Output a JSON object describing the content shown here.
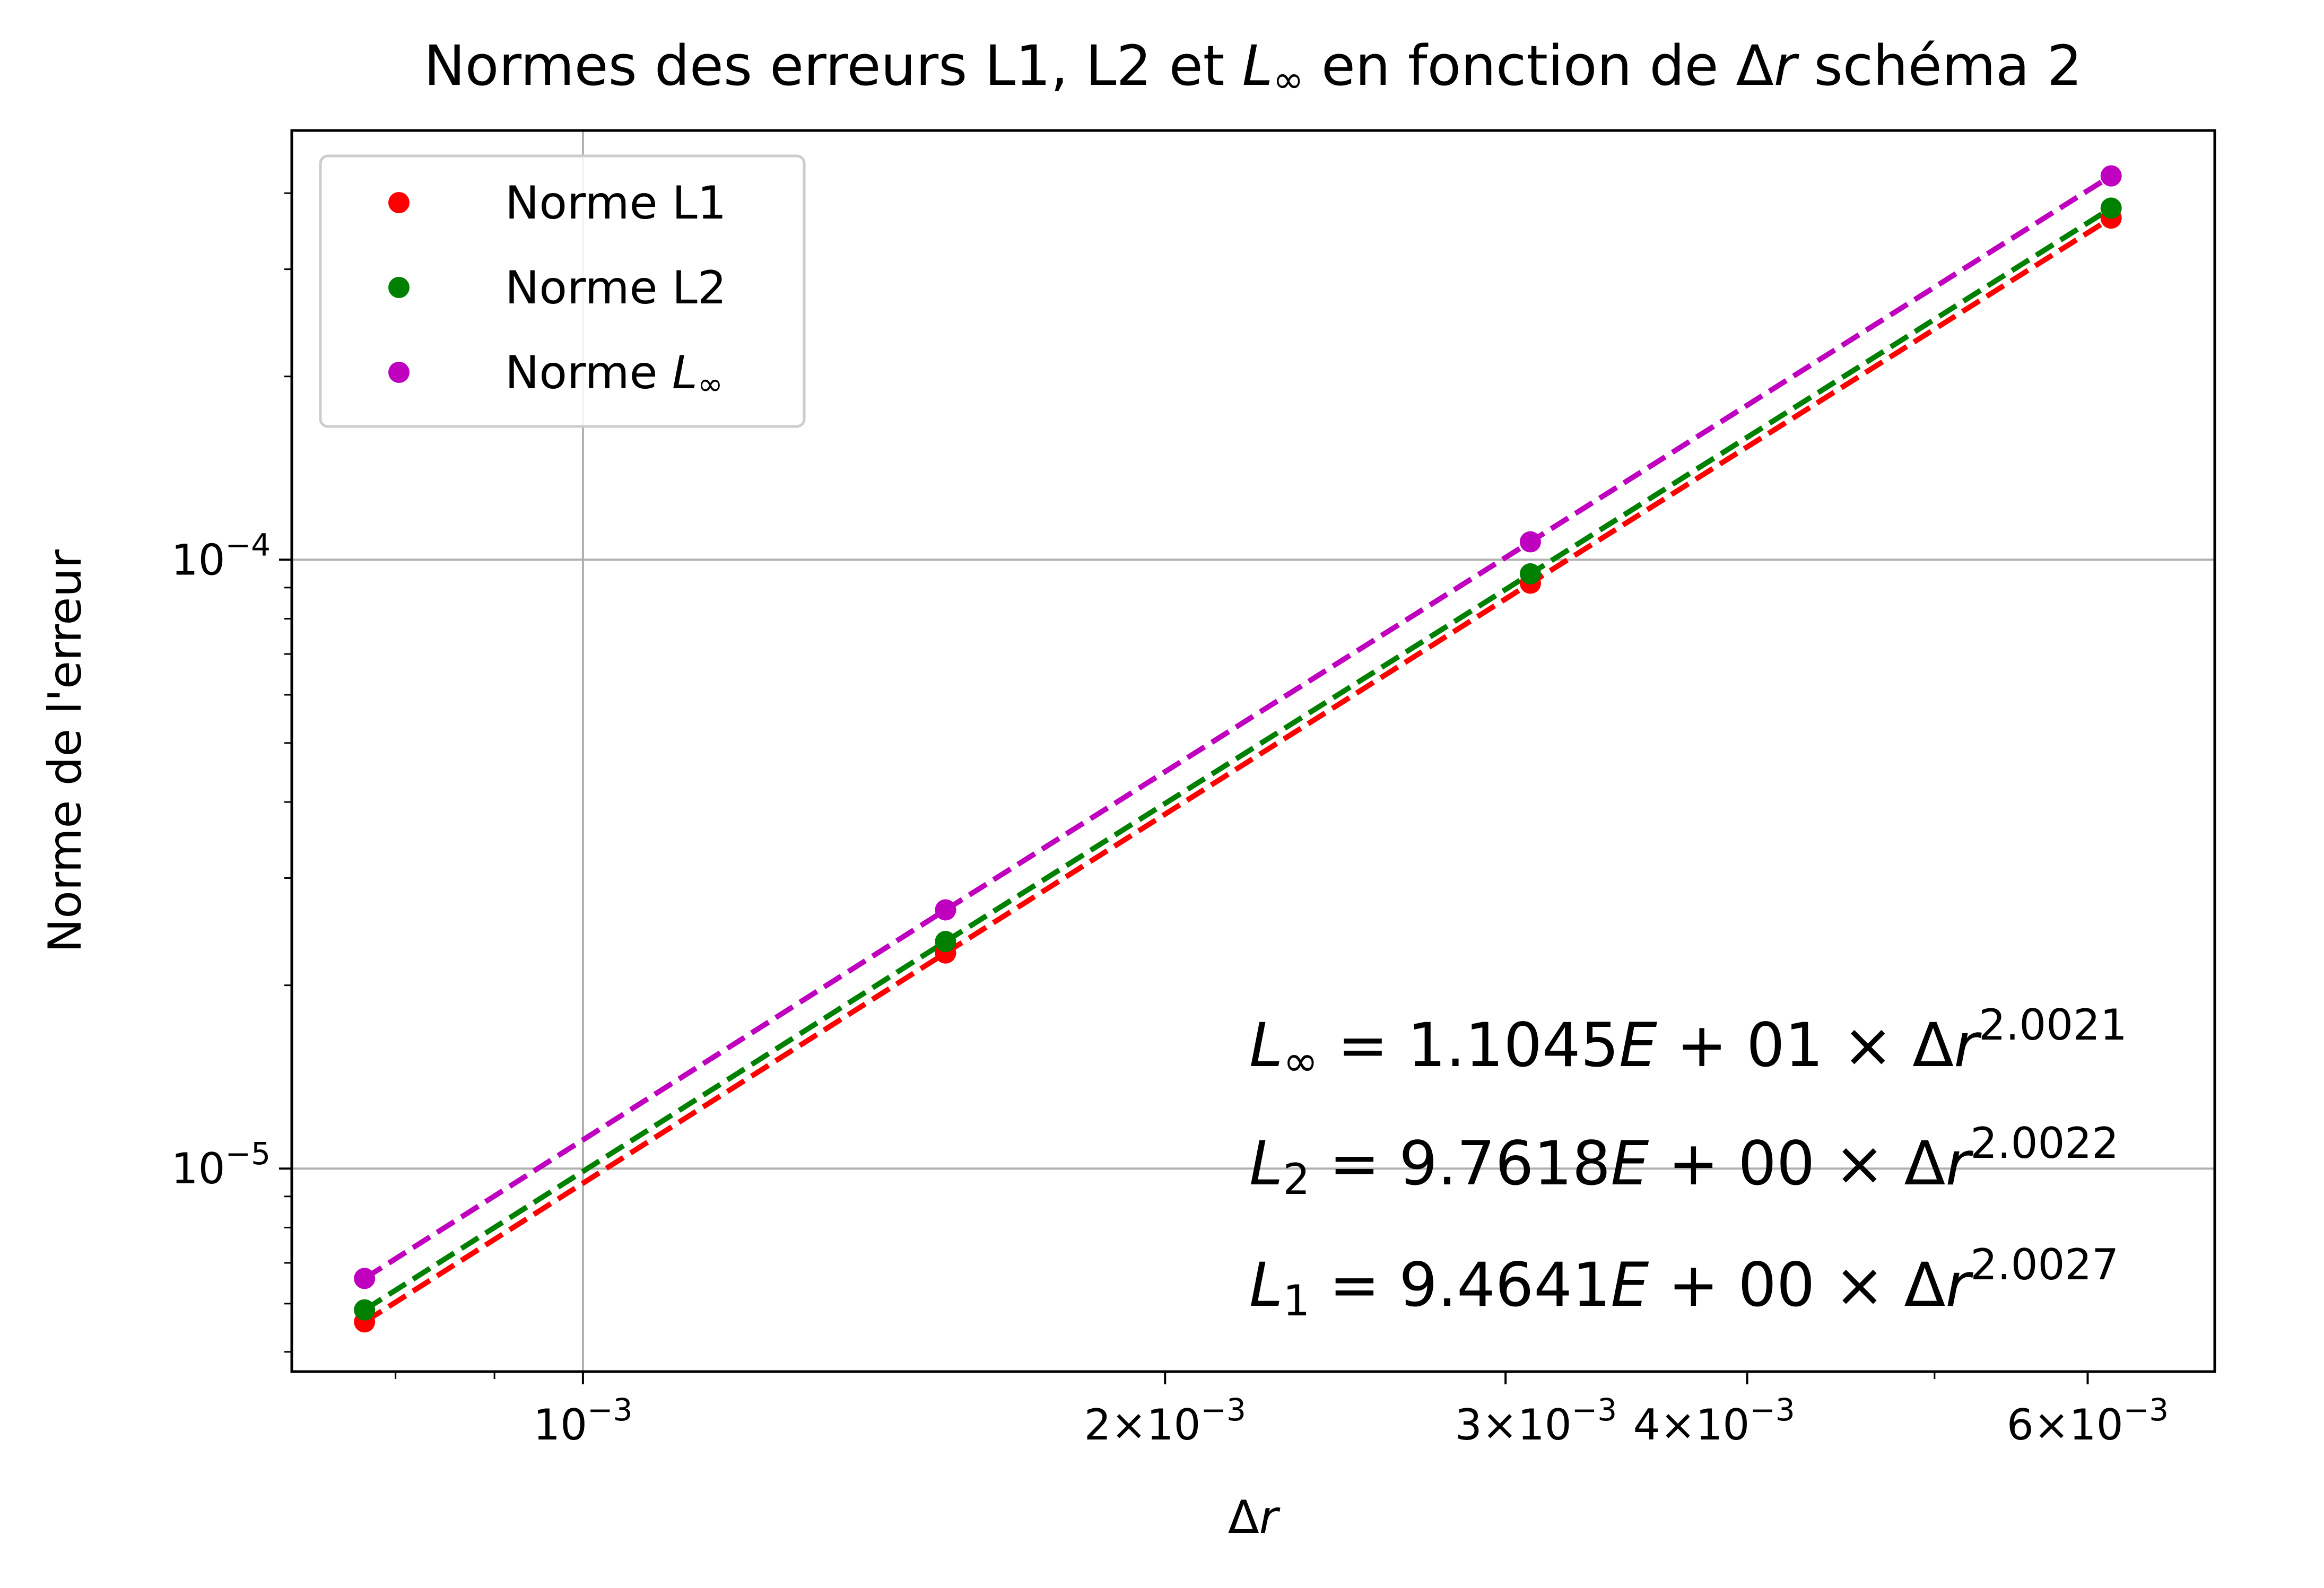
{
  "chart_data": {
    "type": "scatter",
    "title": "Normes des erreurs L1, L2 et L∞ en fonction de Δr schéma 2",
    "xlabel": "Δr",
    "ylabel": "Norme de l'erreur",
    "x_scale": "log",
    "y_scale": "log",
    "xlim": [
      0.000707,
      0.00698
    ],
    "ylim": [
      4.64e-06,
      0.000507
    ],
    "grid": true,
    "legend_position": "upper-left",
    "x_tick_labels": [
      {
        "value": 0.001,
        "label": "10⁻³"
      },
      {
        "value": 0.002,
        "label": "2×10⁻³"
      },
      {
        "value": 0.003,
        "label": "3×10⁻³"
      },
      {
        "value": 0.004,
        "label": "4×10⁻³"
      },
      {
        "value": 0.006,
        "label": "6×10⁻³"
      }
    ],
    "y_tick_labels": [
      {
        "value": 1e-05,
        "label": "10⁻⁵"
      },
      {
        "value": 0.0001,
        "label": "10⁻⁴"
      }
    ],
    "x": [
      0.000771,
      0.00154,
      0.00309,
      0.00617
    ],
    "series": [
      {
        "name": "Norme L1",
        "color": "#ff0000",
        "values": [
          5.6e-06,
          2.26e-05,
          9.15e-05,
          0.000364
        ]
      },
      {
        "name": "Norme L2",
        "color": "#008000",
        "values": [
          5.86e-06,
          2.36e-05,
          9.48e-05,
          0.000378
        ]
      },
      {
        "name": "Norme L∞",
        "color": "#bf00bf",
        "values": [
          6.6e-06,
          2.66e-05,
          0.000107,
          0.000427
        ]
      }
    ],
    "fits": [
      {
        "series": "Norme L1",
        "coefficient": 9.4641,
        "exponent": 2.0027,
        "style": "dashed"
      },
      {
        "series": "Norme L2",
        "coefficient": 9.7618,
        "exponent": 2.0022,
        "style": "dashed"
      },
      {
        "series": "Norme L∞",
        "coefficient": 11.045,
        "exponent": 2.0021,
        "style": "dashed"
      }
    ],
    "annotations": [
      {
        "lhs_base": "L",
        "lhs_sub": "∞",
        "body": "= 1.1045",
        "E": "E",
        "tail": " + 01 × Δ",
        "r": "r",
        "exp": "2.0021"
      },
      {
        "lhs_base": "L",
        "lhs_sub": "2",
        "body": "= 9.7618",
        "E": "E",
        "tail": " + 00 × Δ",
        "r": "r",
        "exp": "2.0022"
      },
      {
        "lhs_base": "L",
        "lhs_sub": "1",
        "body": "= 9.4641",
        "E": "E",
        "tail": " + 00 × Δ",
        "r": "r",
        "exp": "2.0027"
      }
    ]
  }
}
